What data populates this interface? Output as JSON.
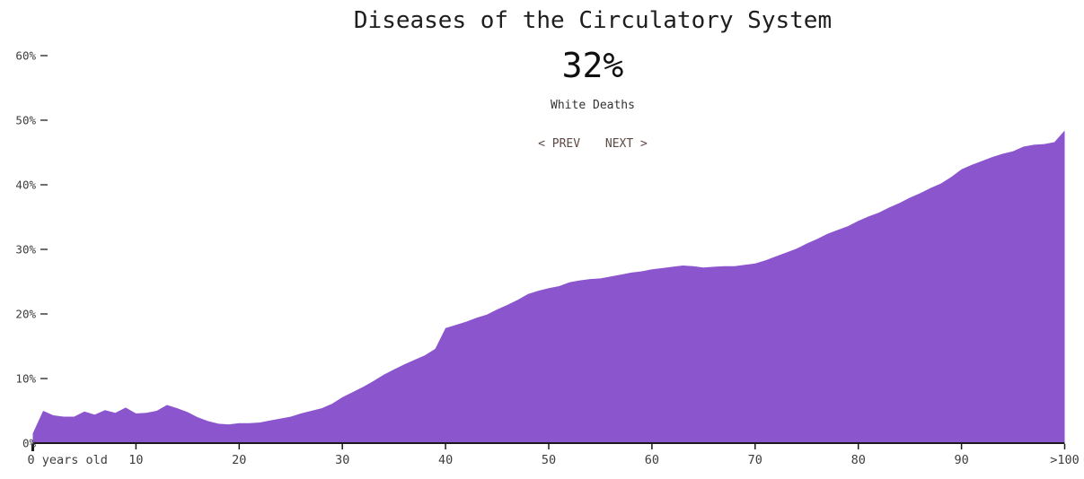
{
  "header": {
    "title": "Diseases of the Circulatory System",
    "headline_value": "32%",
    "subtitle": "White Deaths",
    "prev_label": "< PREV",
    "next_label": "NEXT >"
  },
  "chart_data": {
    "type": "area",
    "title": "Diseases of the Circulatory System",
    "series_name": "White Deaths",
    "highlighted_value": "32%",
    "x_tick_labels": [
      "0 years old",
      "10",
      "20",
      "30",
      "40",
      "50",
      "60",
      "70",
      "80",
      "90",
      ">100"
    ],
    "x_tick_ages": [
      0,
      10,
      20,
      30,
      40,
      50,
      60,
      70,
      80,
      90,
      100
    ],
    "y_tick_labels": [
      "0%",
      "10%",
      "20%",
      "30%",
      "40%",
      "50%",
      "60%"
    ],
    "y_tick_percents": [
      0,
      10,
      20,
      30,
      40,
      50,
      60
    ],
    "ylim": [
      0,
      60
    ],
    "ages_range": [
      0,
      100
    ],
    "ages_step": 1,
    "values_percent_by_age": [
      1.5,
      5,
      4.3,
      4.1,
      4.1,
      4.9,
      4.4,
      5.1,
      4.7,
      5.5,
      4.6,
      4.7,
      5,
      5.9,
      5.4,
      4.8,
      4,
      3.4,
      3,
      2.9,
      3.1,
      3.1,
      3.2,
      3.5,
      3.8,
      4.1,
      4.6,
      5,
      5.4,
      6.1,
      7.1,
      7.9,
      8.7,
      9.6,
      10.6,
      11.4,
      12.2,
      12.9,
      13.6,
      14.6,
      17.8,
      18.3,
      18.8,
      19.4,
      19.9,
      20.7,
      21.4,
      22.2,
      23.1,
      23.6,
      24,
      24.3,
      24.9,
      25.2,
      25.4,
      25.5,
      25.8,
      26.1,
      26.4,
      26.6,
      26.9,
      27.1,
      27.3,
      27.5,
      27.4,
      27.2,
      27.3,
      27.4,
      27.4,
      27.6,
      27.8,
      28.3,
      28.9,
      29.5,
      30.1,
      30.9,
      31.6,
      32.4,
      33,
      33.6,
      34.4,
      35.1,
      35.7,
      36.5,
      37.2,
      38,
      38.7,
      39.5,
      40.2,
      41.2,
      42.4,
      43.1,
      43.7,
      44.3,
      44.8,
      45.2,
      45.9,
      46.2,
      46.3,
      46.6,
      48.4
    ],
    "grid": false,
    "legend": false,
    "area_color": "#8B55CE",
    "axis_color": "#1a1a1a",
    "tick_label_color": "#3d3d3d"
  }
}
